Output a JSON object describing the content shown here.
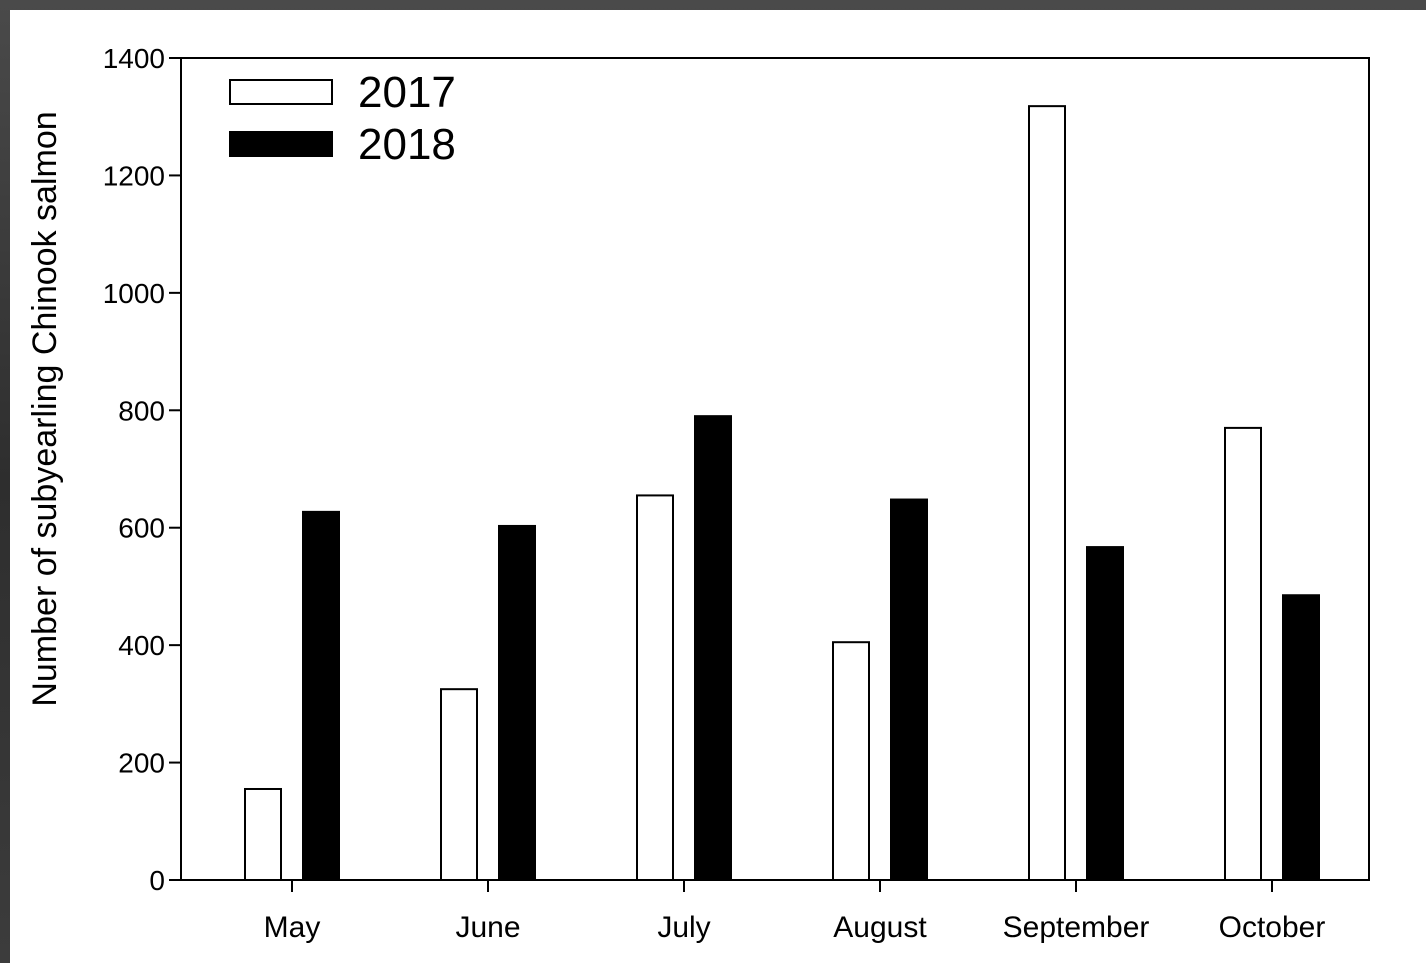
{
  "chart_data": {
    "type": "bar",
    "title": "",
    "xlabel": "",
    "ylabel": "Number of subyearling Chinook salmon",
    "categories": [
      "May",
      "June",
      "July",
      "August",
      "September",
      "October"
    ],
    "series": [
      {
        "name": "2017",
        "values": [
          155,
          325,
          655,
          405,
          1318,
          770
        ],
        "color": "#ffffff"
      },
      {
        "name": "2018",
        "values": [
          627,
          603,
          790,
          648,
          567,
          485
        ],
        "color": "#000000"
      }
    ],
    "ylim": [
      0,
      1400
    ],
    "yticks": [
      0,
      200,
      400,
      600,
      800,
      1000,
      1200,
      1400
    ],
    "grid": false,
    "legend_placement": "top-left"
  }
}
